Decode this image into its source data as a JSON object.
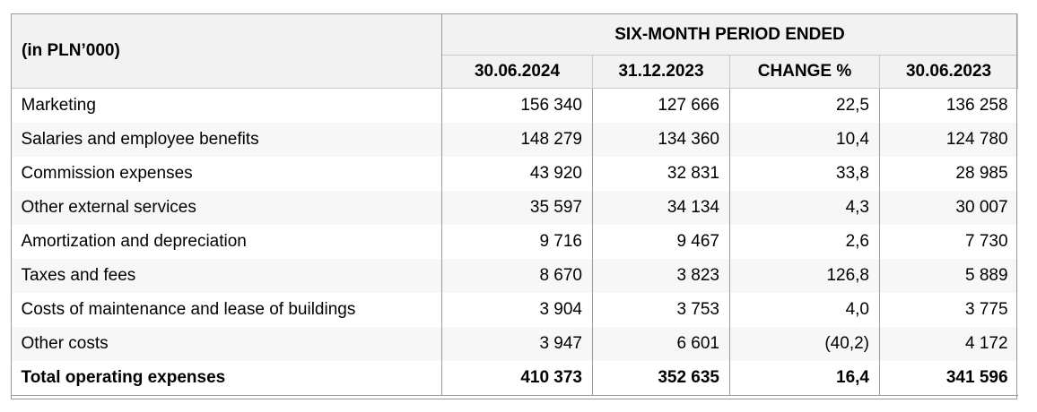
{
  "header": {
    "unit_label": "(in PLN’000)",
    "period_label": "SIX-MONTH PERIOD ENDED",
    "columns": [
      "30.06.2024",
      "31.12.2023",
      "CHANGE %",
      "30.06.2023"
    ]
  },
  "rows": [
    {
      "label": "Marketing",
      "values": [
        "156 340",
        "127 666",
        "22,5",
        "136 258"
      ]
    },
    {
      "label": "Salaries and employee benefits",
      "values": [
        "148 279",
        "134 360",
        "10,4",
        "124 780"
      ]
    },
    {
      "label": "Commission expenses",
      "values": [
        "43 920",
        "32 831",
        "33,8",
        "28 985"
      ]
    },
    {
      "label": "Other external services",
      "values": [
        "35 597",
        "34 134",
        "4,3",
        "30 007"
      ]
    },
    {
      "label": "Amortization and depreciation",
      "values": [
        "9 716",
        "9 467",
        "2,6",
        "7 730"
      ]
    },
    {
      "label": "Taxes and fees",
      "values": [
        "8 670",
        "3 823",
        "126,8",
        "5 889"
      ]
    },
    {
      "label": "Costs of maintenance and lease of buildings",
      "values": [
        "3 904",
        "3 753",
        "4,0",
        "3 775"
      ]
    },
    {
      "label": "Other costs",
      "values": [
        "3 947",
        "6 601",
        "(40,2)",
        "4 172"
      ]
    }
  ],
  "total": {
    "label": "Total operating expenses",
    "values": [
      "410 373",
      "352 635",
      "16,4",
      "341 596"
    ]
  }
}
